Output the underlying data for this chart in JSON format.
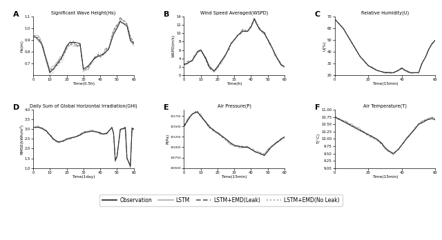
{
  "panels": [
    {
      "label": "A",
      "title": "Significant Wave Height(Hs)",
      "xlabel": "Time(0.5h)",
      "ylabel": "Hs(m)",
      "xlim": [
        0,
        60
      ],
      "ylim": [
        0.6,
        1.1
      ],
      "yticks": [
        0.7,
        0.8,
        0.9,
        1.0,
        1.1
      ],
      "xticks": [
        0,
        10,
        20,
        30,
        40,
        50,
        60
      ]
    },
    {
      "label": "B",
      "title": "Wind Speed Averaged(WSPD)",
      "xlabel": "Time(h)",
      "ylabel": "WSPD(m/s)",
      "xlim": [
        0,
        60
      ],
      "ylim": [
        0,
        14
      ],
      "yticks": [
        0,
        2,
        4,
        6,
        8,
        10,
        12,
        14
      ],
      "xticks": [
        0,
        10,
        20,
        30,
        40,
        50,
        60
      ]
    },
    {
      "label": "C",
      "title": "Relative Humidity(U)",
      "xlabel": "Time(15min)",
      "ylabel": "U(%)",
      "xlim": [
        0,
        60
      ],
      "ylim": [
        20,
        70
      ],
      "yticks": [
        20,
        30,
        40,
        50,
        60,
        70
      ],
      "xticks": [
        0,
        20,
        40,
        60
      ]
    },
    {
      "label": "D",
      "title": "Daily Sum of Global Horizontal Irradiation(GHI)",
      "xlabel": "Time(1day)",
      "ylabel": "RMSE(kWh/m²)",
      "xlim": [
        0,
        60
      ],
      "ylim": [
        1.0,
        4.0
      ],
      "yticks": [
        1.0,
        1.5,
        2.0,
        2.5,
        3.0,
        3.5,
        4.0
      ],
      "xticks": [
        0,
        10,
        20,
        30,
        40,
        50,
        60
      ]
    },
    {
      "label": "E",
      "title": "Air Pressure(P)",
      "xlabel": "Time(15min)",
      "ylabel": "P(Pa)",
      "xlim": [
        0,
        60
      ],
      "ylim": [
        100500,
        101900
      ],
      "yticks": [
        100500,
        100750,
        101000,
        101250,
        101500,
        101750
      ],
      "xticks": [
        0,
        10,
        20,
        30,
        40,
        50,
        60
      ]
    },
    {
      "label": "F",
      "title": "Air Temperature(T)",
      "xlabel": "Time(15min)",
      "ylabel": "T(°C)",
      "xlim": [
        0,
        60
      ],
      "ylim": [
        9.0,
        11.0
      ],
      "yticks": [
        9.0,
        9.25,
        9.5,
        9.75,
        10.0,
        10.25,
        10.5,
        10.75,
        11.0
      ],
      "xticks": [
        0,
        20,
        40,
        60
      ]
    }
  ],
  "colors": {
    "observation": "#1a1a1a",
    "lstm": "#aaaaaa",
    "lstm_emd_leak": "#555555",
    "lstm_emd_noleak": "#888888"
  },
  "legend_labels": [
    "Observation",
    "LSTM",
    "LSTM+EMD(Leak)",
    "LSTM+EMD(No Leak)"
  ]
}
